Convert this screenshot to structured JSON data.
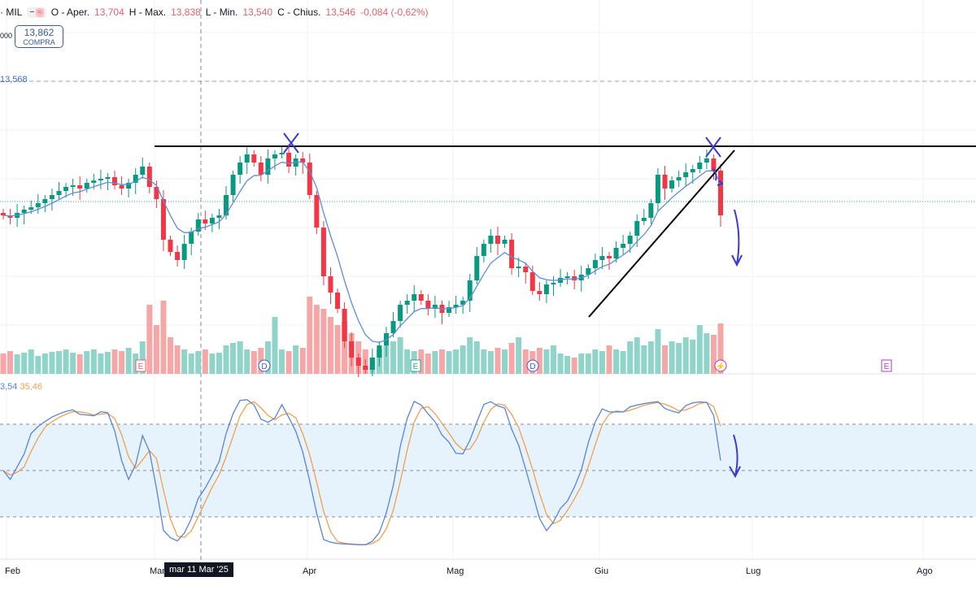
{
  "header": {
    "symbol_suffix": "· MIL",
    "open_label": "O - Aper.",
    "open": "13,704",
    "high_label": "H - Max.",
    "high": "13,838",
    "low_label": "L - Min.",
    "low": "13,540",
    "close_label": "C - Chius.",
    "close": "13,546",
    "change": "-0,084 (-0,62%)",
    "toggle_icons": [
      "minus-icon",
      "approx-icon"
    ]
  },
  "order_button": {
    "price": "13,862",
    "label": "COMPRA"
  },
  "left_labels": {
    "cut_value": "000",
    "price_line": "13,568"
  },
  "oscillator": {
    "k_value": "3,54",
    "d_value": "35,46"
  },
  "crosshair_label": "mar 11 Mar '25",
  "events": [
    {
      "type": "E",
      "color": "#e0626e"
    },
    {
      "type": "D",
      "color": "#3d5ad6"
    },
    {
      "type": "E",
      "color": "#26a69a"
    },
    {
      "type": "D",
      "color": "#3d5ad6"
    },
    {
      "type": "⚡",
      "color": "#b23ac0"
    },
    {
      "type": "E",
      "color": "#b23ac0"
    }
  ],
  "colors": {
    "up": "#089981",
    "down": "#f23645",
    "vol_up": "#8fd3c9",
    "vol_down": "#f5a7a7",
    "ma": "#5b8fd9",
    "k": "#5b84d6",
    "d": "#f0a050",
    "band": "#e6f2fc"
  },
  "chart_data": {
    "type": "candlestick",
    "x_ticks": [
      "Feb",
      "Mar",
      "Apr",
      "Mag",
      "Giu",
      "Lug",
      "Ago"
    ],
    "price_ylim": [
      11.0,
      15.6
    ],
    "closes": [
      12.95,
      12.92,
      12.98,
      13.02,
      13.05,
      13.1,
      13.15,
      13.2,
      13.25,
      13.3,
      13.32,
      13.28,
      13.35,
      13.38,
      13.4,
      13.42,
      13.32,
      13.28,
      13.35,
      13.45,
      13.55,
      13.3,
      13.15,
      12.65,
      12.5,
      12.4,
      12.6,
      12.75,
      12.9,
      12.85,
      12.92,
      12.95,
      13.2,
      13.45,
      13.6,
      13.7,
      13.6,
      13.45,
      13.65,
      13.7,
      13.72,
      13.55,
      13.65,
      13.6,
      13.2,
      12.8,
      12.2,
      12.0,
      11.8,
      11.4,
      11.2,
      11.1,
      11.05,
      11.2,
      11.35,
      11.5,
      11.65,
      11.85,
      11.9,
      11.98,
      11.9,
      11.8,
      11.85,
      11.75,
      11.82,
      11.85,
      11.9,
      12.15,
      12.45,
      12.6,
      12.7,
      12.6,
      12.65,
      12.3,
      12.32,
      12.25,
      12.02,
      11.98,
      12.1,
      12.12,
      12.18,
      12.2,
      12.15,
      12.22,
      12.3,
      12.4,
      12.45,
      12.42,
      12.55,
      12.6,
      12.7,
      12.88,
      12.92,
      13.1,
      13.45,
      13.28,
      13.38,
      13.42,
      13.48,
      13.52,
      13.6,
      13.65,
      13.5,
      12.95
    ],
    "volumes": [
      25,
      28,
      24,
      26,
      30,
      22,
      25,
      27,
      28,
      30,
      26,
      24,
      28,
      30,
      25,
      27,
      30,
      28,
      32,
      25,
      40,
      85,
      60,
      90,
      45,
      35,
      30,
      25,
      28,
      30,
      25,
      26,
      35,
      38,
      40,
      30,
      28,
      32,
      40,
      70,
      30,
      28,
      35,
      32,
      95,
      85,
      80,
      70,
      60,
      65,
      50,
      40,
      30,
      20,
      30,
      35,
      40,
      45,
      30,
      28,
      30,
      25,
      28,
      30,
      28,
      30,
      35,
      45,
      40,
      30,
      28,
      32,
      30,
      38,
      45,
      30,
      28,
      32,
      30,
      35,
      25,
      22,
      20,
      25,
      25,
      30,
      28,
      35,
      30,
      28,
      40,
      45,
      35,
      40,
      55,
      35,
      40,
      38,
      45,
      42,
      60,
      50,
      48,
      62
    ],
    "oscillator_levels": [
      20,
      50,
      80
    ],
    "oscillator_ylim": [
      0,
      100
    ]
  }
}
